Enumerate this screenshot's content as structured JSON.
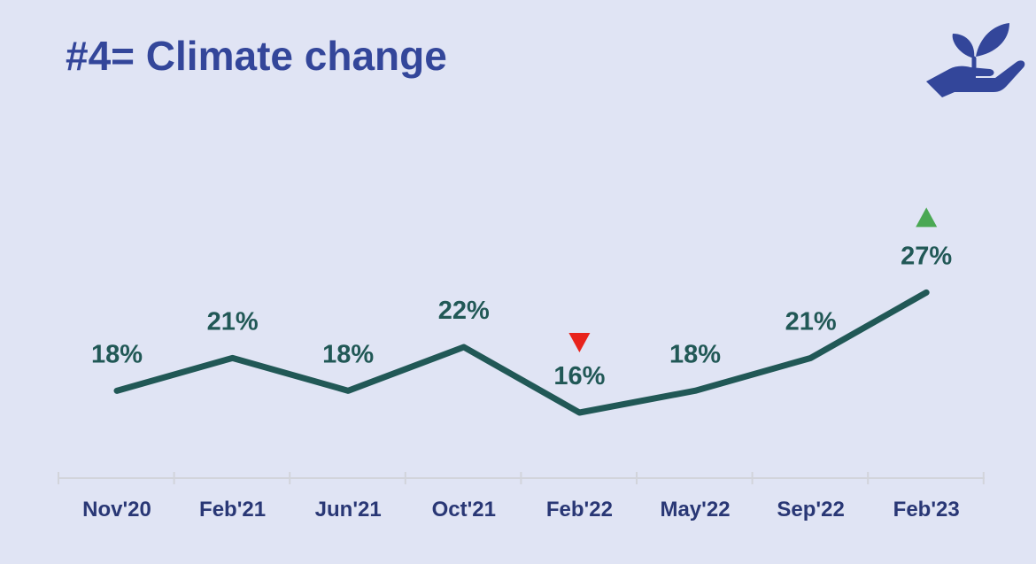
{
  "slide": {
    "title": "#4= Climate change",
    "logo_icon": "hand-holding-plant-icon"
  },
  "chart_data": {
    "type": "line",
    "title": "#4= Climate change",
    "categories": [
      "Nov'20",
      "Feb'21",
      "Jun'21",
      "Oct'21",
      "Feb'22",
      "May'22",
      "Sep'22",
      "Feb'23"
    ],
    "series": [
      {
        "values": [
          18,
          21,
          18,
          22,
          16,
          18,
          21,
          27
        ],
        "labels": [
          "18%",
          "21%",
          "18%",
          "22%",
          "16%",
          "18%",
          "21%",
          "27%"
        ]
      }
    ],
    "unit": "%",
    "ylim": [
      10,
      40
    ],
    "grid": false,
    "legend": "none",
    "markers": [
      {
        "category": "Feb'22",
        "direction": "down",
        "color": "#e8231c"
      },
      {
        "category": "Feb'23",
        "direction": "up",
        "color": "#4aa853"
      }
    ],
    "colors": {
      "line": "#215856",
      "data_label": "#215856",
      "axis": "#d2d4db",
      "tick_label": "#293775",
      "title": "#33469a",
      "background": "#e0e4f4"
    }
  }
}
